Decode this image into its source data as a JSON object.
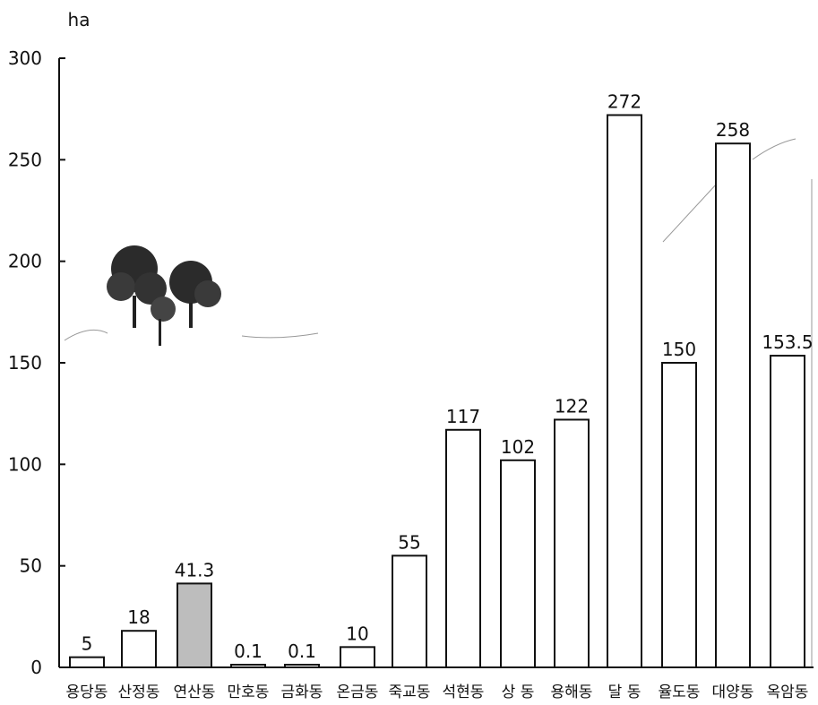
{
  "chart_data": {
    "type": "bar",
    "unit": "ha",
    "yticks": [
      0,
      50,
      100,
      150,
      200,
      250,
      300
    ],
    "ylim": [
      0,
      300
    ],
    "categories": [
      "용당동",
      "산정동",
      "연산동",
      "만호동",
      "금화동",
      "온금동",
      "죽교동",
      "석현동",
      "상 동",
      "용해동",
      "달 동",
      "율도동",
      "대양동",
      "옥암동"
    ],
    "values": [
      5,
      18,
      41.3,
      0.1,
      0.1,
      10,
      55,
      117,
      102,
      122,
      272,
      150,
      258,
      153.5
    ],
    "value_labels": [
      "5",
      "18",
      "41.3",
      "0.1",
      "0.1",
      "10",
      "55",
      "117",
      "102",
      "122",
      "272",
      "150",
      "258",
      "153.5"
    ],
    "grid": false,
    "legend": "none",
    "colors": {
      "bar_fill": "#ffffff",
      "bar_stroke": "#111111",
      "bar_fill_shaded": "#bdbdbd",
      "axis": "#111111"
    },
    "shaded_bars": [
      2
    ]
  }
}
